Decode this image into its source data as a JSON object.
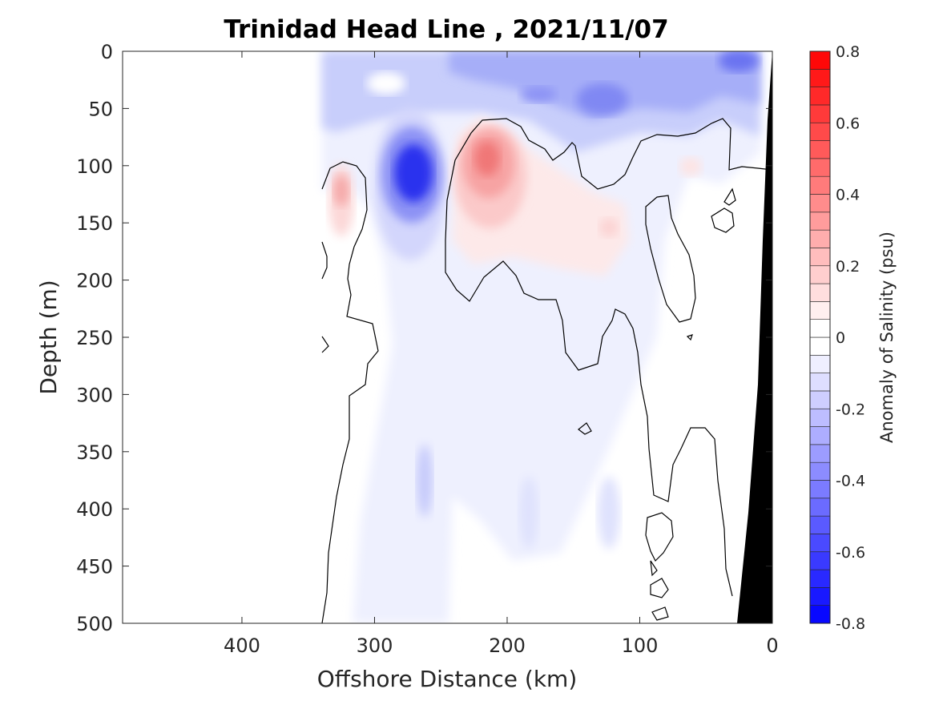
{
  "chart_data": {
    "type": "heatmap",
    "title": "Trinidad Head Line , 2021/11/07",
    "xlabel": "Offshore Distance (km)",
    "ylabel": "Depth (m)",
    "xlim": [
      490,
      0
    ],
    "ylim": [
      0,
      500
    ],
    "x_reversed": true,
    "y_reversed": true,
    "xticks": [
      400,
      300,
      200,
      100,
      0
    ],
    "yticks": [
      0,
      50,
      100,
      150,
      200,
      250,
      300,
      350,
      400,
      450,
      500
    ],
    "data_extent_x": [
      0,
      340
    ],
    "colorbar": {
      "label": "Anomaly of Salinity (psu)",
      "range": [
        -0.8,
        0.8
      ],
      "step": 0.05,
      "ticks": [
        "0.8",
        "0.6",
        "0.4",
        "0.2",
        "0",
        "-0.2",
        "-0.4",
        "-0.6",
        "-0.8"
      ],
      "tick_values": [
        0.8,
        0.6,
        0.4,
        0.2,
        0,
        -0.2,
        -0.4,
        -0.6,
        -0.8
      ],
      "high_color": "#ff0000",
      "zero_color": "#ffffff",
      "low_color": "#0000ff"
    },
    "features": [
      {
        "name": "surface-fresh-layer",
        "x": [
          0,
          340
        ],
        "depth": [
          0,
          90
        ],
        "anomaly": -0.2
      },
      {
        "name": "nearshore-fresh-core",
        "x": 20,
        "depth": 10,
        "anomaly": -0.45
      },
      {
        "name": "fresh-core-120km",
        "x": 125,
        "depth": 45,
        "anomaly": -0.4
      },
      {
        "name": "deep-fresh-core",
        "x": 270,
        "depth": 110,
        "anomaly": -0.75
      },
      {
        "name": "salty-core-210km",
        "x": 212,
        "depth": 100,
        "anomaly": 0.45
      },
      {
        "name": "salty-core-320km",
        "x": 322,
        "depth": 125,
        "anomaly": 0.3
      },
      {
        "name": "weak-salty-tongue",
        "x": 140,
        "depth": 150,
        "anomaly": 0.1
      }
    ],
    "zero_contour": true,
    "bathymetry_color": "#000000"
  }
}
